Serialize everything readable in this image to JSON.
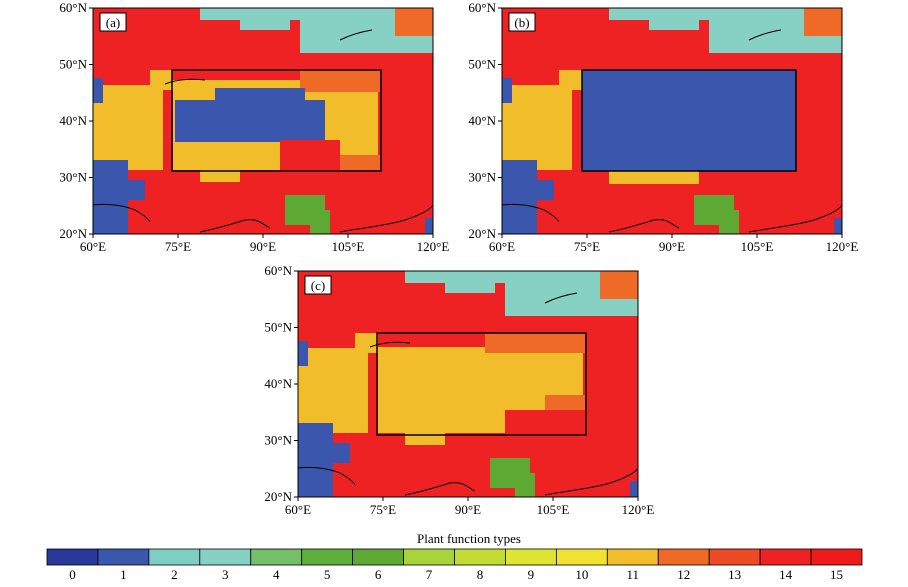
{
  "figure": {
    "colorbar": {
      "title": "Plant function types",
      "labels": [
        "0",
        "1",
        "2",
        "3",
        "4",
        "5",
        "6",
        "7",
        "8",
        "9",
        "10",
        "11",
        "12",
        "13",
        "14",
        "15"
      ],
      "colors": [
        "#28389b",
        "#3a57ad",
        "#7fcec4",
        "#86d1c3",
        "#74bf6a",
        "#5daf3a",
        "#5ea933",
        "#a6d43a",
        "#c2dc33",
        "#dfe533",
        "#f2e12e",
        "#f1bd2b",
        "#ef6a27",
        "#ef4a26",
        "#ee2222",
        "#ef1a1a"
      ]
    },
    "panels": [
      {
        "label": "(a)"
      },
      {
        "label": "(b)"
      },
      {
        "label": "(c)"
      }
    ]
  },
  "chart_data": [
    {
      "type": "heatmap",
      "panel": "(a)",
      "xticks": [
        "60°E",
        "75°E",
        "90°E",
        "105°E",
        "120°E"
      ],
      "yticks": [
        "20°N",
        "30°N",
        "40°N",
        "50°N",
        "60°N"
      ],
      "xlim": [
        60,
        120
      ],
      "ylim": [
        20,
        60
      ],
      "box": {
        "lon": [
          74,
          112
        ],
        "lat": [
          31,
          49
        ],
        "content": "mixed: types 1, 11, 12, 13, 14"
      },
      "dominant_type": 14
    },
    {
      "type": "heatmap",
      "panel": "(b)",
      "xticks": [
        "60°E",
        "75°E",
        "90°E",
        "105°E",
        "120°E"
      ],
      "yticks": [
        "20°N",
        "30°N",
        "40°N",
        "50°N",
        "60°N"
      ],
      "xlim": [
        60,
        120
      ],
      "ylim": [
        20,
        60
      ],
      "box": {
        "lon": [
          74,
          112
        ],
        "lat": [
          31,
          49
        ],
        "fill_type": 1
      },
      "dominant_type": 14
    },
    {
      "type": "heatmap",
      "panel": "(c)",
      "xticks": [
        "60°E",
        "75°E",
        "90°E",
        "105°E",
        "120°E"
      ],
      "yticks": [
        "20°N",
        "30°N",
        "40°N",
        "50°N",
        "60°N"
      ],
      "xlim": [
        60,
        120
      ],
      "ylim": [
        20,
        60
      ],
      "box": {
        "lon": [
          74,
          112
        ],
        "lat": [
          31,
          49
        ],
        "content": "mostly type 11 with type 14 fringe"
      },
      "dominant_type": 14
    }
  ]
}
